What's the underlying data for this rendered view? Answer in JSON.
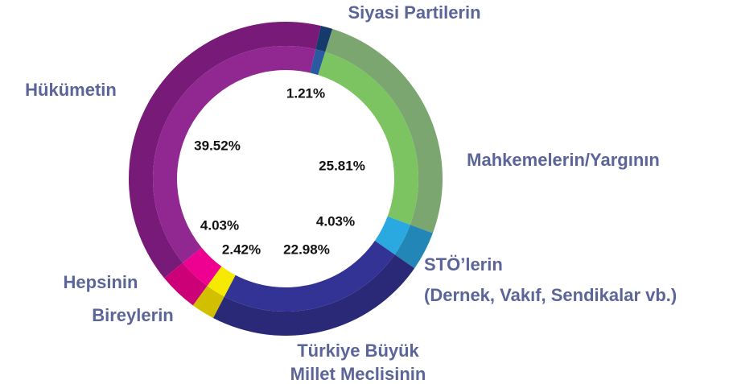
{
  "chart_data": {
    "type": "donut",
    "categories": [
      [
        "Siyasi Partilerin"
      ],
      [
        "Mahkemelerin/Yargının"
      ],
      [
        "STÖ’lerin",
        "(Dernek, Vakıf, Sendikalar vb.)"
      ],
      [
        "Türkiye Büyük",
        "Millet Meclisinin"
      ],
      [
        "Bireylerin"
      ],
      [
        "Hepsinin"
      ],
      [
        "Hükümetin"
      ]
    ],
    "values": [
      1.21,
      25.81,
      4.03,
      22.98,
      2.42,
      4.03,
      39.52
    ],
    "value_labels": [
      "1.21%",
      "25.81%",
      "4.03%",
      "22.98%",
      "2.42%",
      "4.03%",
      "39.52%"
    ],
    "colors": [
      "#173a6c",
      "#7ca66f",
      "#2287b6",
      "#2a2978",
      "#d2bf00",
      "#cc0077",
      "#781a78"
    ],
    "inner_colors": [
      "#2a5ba2",
      "#7cc462",
      "#2aa9e1",
      "#333396",
      "#f6e900",
      "#ee0090",
      "#912891"
    ]
  }
}
